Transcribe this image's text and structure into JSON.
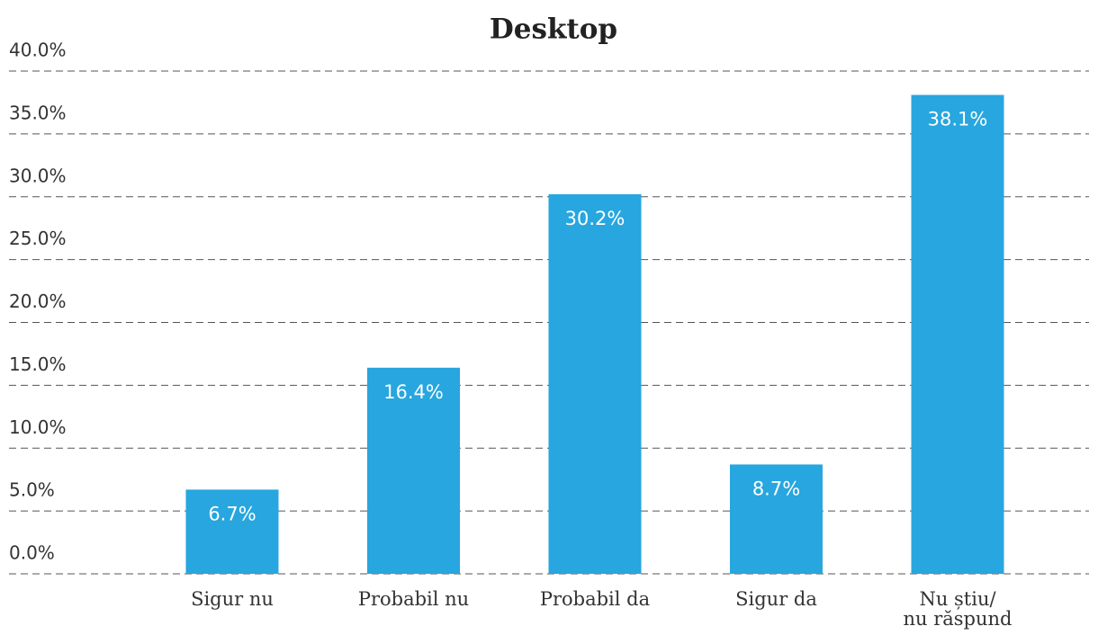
{
  "chart_data": {
    "type": "bar",
    "title": "Desktop",
    "categories": [
      "Sigur nu",
      "Probabil nu",
      "Probabil da",
      "Sigur da",
      "Nu știu/\nnu răspund"
    ],
    "values": [
      6.7,
      16.4,
      30.2,
      8.7,
      38.1
    ],
    "value_labels": [
      "6.7%",
      "16.4%",
      "30.2%",
      "8.7%",
      "38.1%"
    ],
    "color": "#27a6df",
    "ylim": [
      0,
      40
    ],
    "yticks": [
      {
        "value": 0,
        "label": "0.0%"
      },
      {
        "value": 5,
        "label": "5.0%"
      },
      {
        "value": 10,
        "label": "10.0%"
      },
      {
        "value": 15,
        "label": "15.0%"
      },
      {
        "value": 20,
        "label": "20.0%"
      },
      {
        "value": 25,
        "label": "25.0%"
      },
      {
        "value": 30,
        "label": "30.0%"
      },
      {
        "value": 35,
        "label": "35.0%"
      },
      {
        "value": 40,
        "label": "40.0%"
      }
    ],
    "grid": true
  }
}
